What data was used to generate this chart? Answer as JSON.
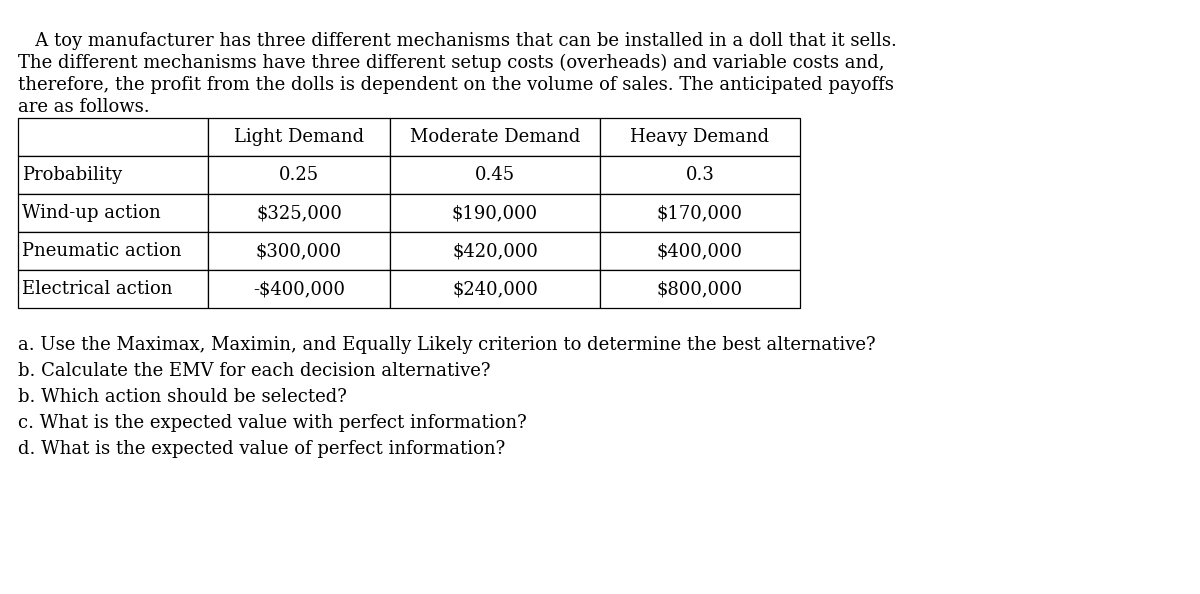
{
  "intro_lines": [
    "   A toy manufacturer has three different mechanisms that can be installed in a doll that it sells.",
    "The different mechanisms have three different setup costs (overheads) and variable costs and,",
    "therefore, the profit from the dolls is dependent on the volume of sales. The anticipated payoffs",
    "are as follows."
  ],
  "table": {
    "col_headers": [
      "",
      "Light Demand",
      "Moderate Demand",
      "Heavy Demand"
    ],
    "rows": [
      [
        "Probability",
        "0.25",
        "0.45",
        "0.3"
      ],
      [
        "Wind-up action",
        "$325,000",
        "$190,000",
        "$170,000"
      ],
      [
        "Pneumatic action",
        "$300,000",
        "$420,000",
        "$400,000"
      ],
      [
        "Electrical action",
        "-$400,000",
        "$240,000",
        "$800,000"
      ]
    ]
  },
  "questions": [
    "a. Use the Maximax, Maximin, and Equally Likely criterion to determine the best alternative?",
    "b. Calculate the EMV for each decision alternative?",
    "b. Which action should be selected?",
    "c. What is the expected value with perfect information?",
    "d. What is the expected value of perfect information?"
  ],
  "bg_color": "#ffffff",
  "text_color": "#000000",
  "font_family": "DejaVu Serif",
  "intro_fontsize": 13.0,
  "table_fontsize": 13.0,
  "question_fontsize": 13.0
}
